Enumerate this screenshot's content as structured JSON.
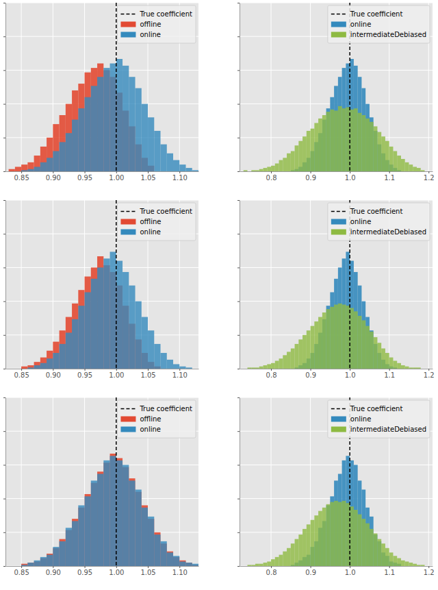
{
  "chart_data": [
    {
      "type": "histogram",
      "xlim": [
        0.825,
        1.13
      ],
      "xticks": [
        0.85,
        {
          "value": 0.9,
          "label": "0.90"
        },
        0.95,
        {
          "value": 1,
          "label": "1.00"
        },
        1.05,
        {
          "value": 1.1,
          "label": "1.10"
        }
      ],
      "ylim": [
        0,
        150
      ],
      "yticks": [
        0,
        30,
        60,
        90,
        120,
        150
      ],
      "grid": true,
      "legend": "upper right",
      "tick_labels": "x",
      "series": [
        {
          "name": "True coefficient",
          "type": "vline",
          "x": 1,
          "color": "#000000",
          "line_style": "dashed"
        },
        {
          "name": "offline",
          "color": "#E24A33",
          "bins": [
            0.83,
            0.84,
            0.85,
            0.86,
            0.87,
            0.88,
            0.89,
            0.9,
            0.91,
            0.92,
            0.93,
            0.94,
            0.95,
            0.96,
            0.97,
            0.98,
            0.99,
            1,
            1.01,
            1.02,
            1.03,
            1.04,
            1.05,
            1.06
          ],
          "values": [
            2,
            4,
            6,
            8,
            14,
            22,
            30,
            42,
            50,
            60,
            72,
            78,
            88,
            92,
            96,
            90,
            84,
            70,
            54,
            40,
            24,
            12,
            5
          ]
        },
        {
          "name": "online",
          "color": "#348ABD",
          "bins": [
            0.85,
            0.86,
            0.87,
            0.88,
            0.89,
            0.9,
            0.91,
            0.92,
            0.93,
            0.94,
            0.95,
            0.96,
            0.97,
            0.98,
            0.99,
            1,
            1.01,
            1.02,
            1.03,
            1.04,
            1.05,
            1.06,
            1.07,
            1.08,
            1.09,
            1.1,
            1.11,
            1.12,
            1.13
          ],
          "values": [
            1,
            2,
            4,
            8,
            12,
            18,
            26,
            34,
            46,
            56,
            66,
            76,
            84,
            92,
            96,
            100,
            94,
            84,
            74,
            60,
            48,
            36,
            24,
            16,
            10,
            6,
            3,
            1
          ]
        }
      ]
    },
    {
      "type": "histogram",
      "xlim": [
        0.72,
        1.21
      ],
      "xticks": [
        0.8,
        0.9,
        {
          "value": 1,
          "label": "1.0"
        },
        1.1,
        1.2
      ],
      "ylim": [
        0,
        150
      ],
      "yticks": [
        0,
        30,
        60,
        90,
        120,
        150
      ],
      "grid": true,
      "legend": "upper right",
      "tick_labels": "x",
      "series": [
        {
          "name": "True coefficient",
          "type": "vline",
          "x": 1,
          "color": "#000000",
          "line_style": "dashed"
        },
        {
          "name": "online",
          "color": "#348ABD",
          "bins": [
            0.85,
            0.86,
            0.87,
            0.88,
            0.89,
            0.9,
            0.91,
            0.92,
            0.93,
            0.94,
            0.95,
            0.96,
            0.97,
            0.98,
            0.99,
            1,
            1.01,
            1.02,
            1.03,
            1.04,
            1.05,
            1.06,
            1.07,
            1.08,
            1.09,
            1.1,
            1.11,
            1.12,
            1.13
          ],
          "values": [
            1,
            2,
            4,
            8,
            12,
            18,
            26,
            34,
            46,
            56,
            66,
            76,
            84,
            92,
            96,
            100,
            94,
            84,
            74,
            60,
            48,
            36,
            24,
            16,
            10,
            6,
            3,
            1
          ]
        },
        {
          "name": "intermediateDebiased",
          "color": "#8EBA42",
          "bins": [
            0.73,
            0.74,
            0.75,
            0.76,
            0.77,
            0.78,
            0.79,
            0.8,
            0.81,
            0.82,
            0.83,
            0.84,
            0.85,
            0.86,
            0.87,
            0.88,
            0.89,
            0.9,
            0.91,
            0.92,
            0.93,
            0.94,
            0.95,
            0.96,
            0.97,
            0.98,
            0.99,
            1,
            1.01,
            1.02,
            1.03,
            1.04,
            1.05,
            1.06,
            1.07,
            1.08,
            1.09,
            1.1,
            1.11,
            1.12,
            1.13,
            1.14,
            1.15,
            1.16,
            1.17,
            1.18,
            1.19
          ],
          "values": [
            1,
            0,
            1,
            1,
            2,
            3,
            4,
            5,
            7,
            10,
            12,
            16,
            18,
            23,
            27,
            31,
            36,
            38,
            43,
            47,
            50,
            53,
            55,
            54,
            58,
            56,
            57,
            55,
            56,
            52,
            50,
            47,
            44,
            40,
            35,
            31,
            27,
            22,
            18,
            14,
            11,
            8,
            6,
            4,
            3,
            1
          ]
        }
      ]
    },
    {
      "type": "histogram",
      "xlim": [
        0.825,
        1.13
      ],
      "xticks": [
        0.85,
        {
          "value": 0.9,
          "label": "0.90"
        },
        0.95,
        {
          "value": 1,
          "label": "1.00"
        },
        1.05,
        {
          "value": 1.1,
          "label": "1.10"
        }
      ],
      "ylim": [
        0,
        150
      ],
      "yticks": [
        0,
        30,
        60,
        90,
        120,
        150
      ],
      "grid": true,
      "legend": "upper right",
      "tick_labels": "x",
      "series": [
        {
          "name": "True coefficient",
          "type": "vline",
          "x": 1,
          "color": "#000000",
          "line_style": "dashed"
        },
        {
          "name": "offline",
          "color": "#E24A33",
          "bins": [
            0.85,
            0.86,
            0.87,
            0.88,
            0.89,
            0.9,
            0.91,
            0.92,
            0.93,
            0.94,
            0.95,
            0.96,
            0.97,
            0.98,
            0.99,
            1,
            1.01,
            1.02,
            1.03,
            1.04,
            1.05,
            1.06,
            1.07
          ],
          "values": [
            2,
            3,
            6,
            10,
            16,
            24,
            34,
            46,
            58,
            70,
            82,
            90,
            100,
            92,
            86,
            74,
            56,
            40,
            26,
            14,
            6,
            2
          ]
        },
        {
          "name": "online",
          "color": "#348ABD",
          "bins": [
            0.86,
            0.87,
            0.88,
            0.89,
            0.9,
            0.91,
            0.92,
            0.93,
            0.94,
            0.95,
            0.96,
            0.97,
            0.98,
            0.99,
            1,
            1.01,
            1.02,
            1.03,
            1.04,
            1.05,
            1.06,
            1.07,
            1.08,
            1.09,
            1.1,
            1.11,
            1.12
          ],
          "values": [
            1,
            3,
            5,
            9,
            14,
            22,
            32,
            44,
            56,
            68,
            80,
            90,
            98,
            104,
            96,
            86,
            74,
            60,
            46,
            34,
            22,
            14,
            8,
            4,
            2,
            1
          ]
        }
      ]
    },
    {
      "type": "histogram",
      "xlim": [
        0.72,
        1.21
      ],
      "xticks": [
        0.8,
        0.9,
        {
          "value": 1,
          "label": "1.0"
        },
        1.1,
        1.2
      ],
      "ylim": [
        0,
        150
      ],
      "yticks": [
        0,
        30,
        60,
        90,
        120,
        150
      ],
      "grid": true,
      "legend": "upper right",
      "tick_labels": "x",
      "series": [
        {
          "name": "True coefficient",
          "type": "vline",
          "x": 1,
          "color": "#000000",
          "line_style": "dashed"
        },
        {
          "name": "online",
          "color": "#348ABD",
          "bins": [
            0.86,
            0.87,
            0.88,
            0.89,
            0.9,
            0.91,
            0.92,
            0.93,
            0.94,
            0.95,
            0.96,
            0.97,
            0.98,
            0.99,
            1,
            1.01,
            1.02,
            1.03,
            1.04,
            1.05,
            1.06,
            1.07,
            1.08,
            1.09,
            1.1,
            1.11,
            1.12
          ],
          "values": [
            1,
            3,
            5,
            9,
            14,
            22,
            32,
            44,
            56,
            68,
            80,
            90,
            98,
            104,
            96,
            86,
            74,
            60,
            46,
            34,
            22,
            14,
            8,
            4,
            2,
            1
          ]
        },
        {
          "name": "intermediateDebiased",
          "color": "#8EBA42",
          "bins": [
            0.74,
            0.75,
            0.76,
            0.77,
            0.78,
            0.79,
            0.8,
            0.81,
            0.82,
            0.83,
            0.84,
            0.85,
            0.86,
            0.87,
            0.88,
            0.89,
            0.9,
            0.91,
            0.92,
            0.93,
            0.94,
            0.95,
            0.96,
            0.97,
            0.98,
            0.99,
            1,
            1.01,
            1.02,
            1.03,
            1.04,
            1.05,
            1.06,
            1.07,
            1.08,
            1.09,
            1.1,
            1.11,
            1.12,
            1.13,
            1.14,
            1.15,
            1.16,
            1.17,
            1.18
          ],
          "values": [
            1,
            1,
            1,
            2,
            3,
            4,
            5,
            7,
            9,
            12,
            15,
            18,
            22,
            26,
            30,
            34,
            38,
            42,
            46,
            50,
            53,
            55,
            57,
            58,
            57,
            56,
            54,
            51,
            47,
            43,
            38,
            33,
            28,
            23,
            18,
            14,
            10,
            7,
            5,
            3,
            2,
            1,
            1,
            1
          ]
        }
      ]
    },
    {
      "type": "histogram",
      "xlim": [
        0.825,
        1.13
      ],
      "xticks": [
        0.85,
        {
          "value": 0.9,
          "label": "0.90"
        },
        0.95,
        {
          "value": 1,
          "label": "1.00"
        },
        1.05,
        {
          "value": 1.1,
          "label": "1.10"
        }
      ],
      "ylim": [
        0,
        150
      ],
      "yticks": [
        0,
        30,
        60,
        90,
        120,
        150
      ],
      "grid": true,
      "legend": "upper right",
      "tick_labels": "x",
      "series": [
        {
          "name": "True coefficient",
          "type": "vline",
          "x": 1,
          "color": "#000000",
          "line_style": "dashed"
        },
        {
          "name": "offline",
          "color": "#E24A33",
          "bins": [
            0.85,
            0.86,
            0.87,
            0.88,
            0.89,
            0.9,
            0.91,
            0.92,
            0.93,
            0.94,
            0.95,
            0.96,
            0.97,
            0.98,
            0.99,
            1,
            1.01,
            1.02,
            1.03,
            1.04,
            1.05,
            1.06,
            1.07,
            1.08,
            1.09,
            1.1,
            1.11,
            1.12,
            1.13
          ],
          "values": [
            2,
            3,
            4,
            7,
            11,
            16,
            24,
            32,
            42,
            52,
            64,
            74,
            84,
            92,
            100,
            96,
            88,
            78,
            66,
            54,
            42,
            30,
            20,
            13,
            8,
            5,
            3,
            1
          ]
        },
        {
          "name": "online",
          "color": "#348ABD",
          "bins": [
            0.85,
            0.86,
            0.87,
            0.88,
            0.89,
            0.9,
            0.91,
            0.92,
            0.93,
            0.94,
            0.95,
            0.96,
            0.97,
            0.98,
            0.99,
            1,
            1.01,
            1.02,
            1.03,
            1.04,
            1.05,
            1.06,
            1.07,
            1.08,
            1.09,
            1.1,
            1.11,
            1.12,
            1.13
          ],
          "values": [
            1,
            3,
            5,
            8,
            10,
            17,
            22,
            34,
            40,
            54,
            62,
            76,
            82,
            94,
            98,
            94,
            90,
            76,
            68,
            52,
            44,
            28,
            22,
            12,
            9,
            4,
            3,
            2
          ]
        }
      ]
    },
    {
      "type": "histogram",
      "xlim": [
        0.72,
        1.21
      ],
      "xticks": [
        0.8,
        0.9,
        {
          "value": 1,
          "label": "1.0"
        },
        1.1,
        1.2
      ],
      "ylim": [
        0,
        150
      ],
      "yticks": [
        0,
        30,
        60,
        90,
        120,
        150
      ],
      "grid": true,
      "legend": "upper right",
      "tick_labels": "x",
      "series": [
        {
          "name": "True coefficient",
          "type": "vline",
          "x": 1,
          "color": "#000000",
          "line_style": "dashed"
        },
        {
          "name": "online",
          "color": "#348ABD",
          "bins": [
            0.85,
            0.86,
            0.87,
            0.88,
            0.89,
            0.9,
            0.91,
            0.92,
            0.93,
            0.94,
            0.95,
            0.96,
            0.97,
            0.98,
            0.99,
            1,
            1.01,
            1.02,
            1.03,
            1.04,
            1.05,
            1.06,
            1.07,
            1.08,
            1.09,
            1.1,
            1.11,
            1.12,
            1.13
          ],
          "values": [
            1,
            3,
            5,
            8,
            10,
            17,
            22,
            34,
            40,
            54,
            62,
            76,
            82,
            94,
            98,
            94,
            90,
            76,
            68,
            52,
            44,
            28,
            22,
            12,
            9,
            4,
            3,
            2
          ]
        },
        {
          "name": "intermediateDebiased",
          "color": "#8EBA42",
          "bins": [
            0.74,
            0.75,
            0.76,
            0.77,
            0.78,
            0.79,
            0.8,
            0.81,
            0.82,
            0.83,
            0.84,
            0.85,
            0.86,
            0.87,
            0.88,
            0.89,
            0.9,
            0.91,
            0.92,
            0.93,
            0.94,
            0.95,
            0.96,
            0.97,
            0.98,
            0.99,
            1,
            1.01,
            1.02,
            1.03,
            1.04,
            1.05,
            1.06,
            1.07,
            1.08,
            1.09,
            1.1,
            1.11,
            1.12,
            1.13,
            1.14,
            1.15,
            1.16,
            1.17,
            1.18,
            1.19
          ],
          "values": [
            1,
            1,
            2,
            2,
            3,
            4,
            6,
            8,
            10,
            13,
            16,
            20,
            24,
            28,
            33,
            37,
            41,
            45,
            49,
            52,
            55,
            57,
            58,
            57,
            58,
            56,
            53,
            50,
            46,
            42,
            38,
            33,
            29,
            24,
            20,
            16,
            12,
            9,
            7,
            5,
            4,
            3,
            2,
            1,
            1
          ]
        }
      ]
    }
  ]
}
